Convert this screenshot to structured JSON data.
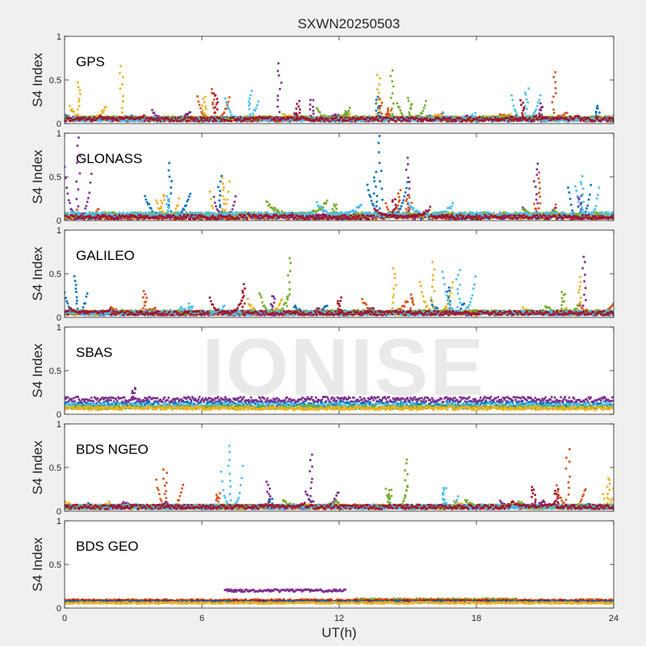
{
  "watermark": "IONISE",
  "chart_data": {
    "type": "scatter",
    "title": "SXWN20250503",
    "xlabel": "UT(h)",
    "ylabel": "S4 Index",
    "xlim": [
      0,
      24
    ],
    "ylim": [
      0,
      1
    ],
    "xticks": [
      0,
      6,
      12,
      18,
      24
    ],
    "yticks": [
      0,
      0.5,
      1
    ],
    "ytick_labels": [
      "0",
      "0.5",
      "1"
    ],
    "grid": false,
    "legend": "none",
    "series_colors": [
      "#0072bd",
      "#d95319",
      "#edb120",
      "#7e2f8e",
      "#77ac30",
      "#4dbeee",
      "#a2142f"
    ],
    "panels": [
      {
        "label": "GPS",
        "series": [
          {
            "color": "#0072bd",
            "base": 0.05,
            "arcs": [
              [
                0.0,
                3.0,
                0.08
              ],
              [
                8.2,
                10.8,
                0.07
              ],
              [
                13.5,
                16.0,
                0.08
              ],
              [
                21.5,
                24.0,
                0.08
              ]
            ],
            "spikes": [
              [
                13.7,
                0.3
              ],
              [
                23.3,
                0.2
              ]
            ]
          },
          {
            "color": "#d95319",
            "base": 0.05,
            "arcs": [
              [
                5.8,
                7.2,
                0.3
              ],
              [
                19.0,
                22.0,
                0.12
              ],
              [
                14.0,
                16.5,
                0.1
              ]
            ],
            "spikes": [
              [
                6.5,
                0.4
              ],
              [
                21.4,
                0.6
              ],
              [
                13.8,
                0.3
              ],
              [
                14.2,
                0.18
              ]
            ]
          },
          {
            "color": "#edb120",
            "base": 0.06,
            "arcs": [
              [
                0.2,
                1.8,
                0.2
              ],
              [
                9.5,
                12.5,
                0.1
              ],
              [
                16.0,
                19.5,
                0.09
              ]
            ],
            "spikes": [
              [
                0.6,
                0.47
              ],
              [
                2.5,
                0.65
              ],
              [
                13.7,
                0.57
              ],
              [
                6.1,
                0.3
              ]
            ]
          },
          {
            "color": "#7e2f8e",
            "base": 0.05,
            "arcs": [
              [
                3.8,
                5.5,
                0.15
              ],
              [
                10.0,
                12.0,
                0.12
              ],
              [
                17.5,
                19.8,
                0.1
              ]
            ],
            "spikes": [
              [
                9.4,
                0.68
              ],
              [
                10.8,
                0.28
              ],
              [
                20.8,
                0.22
              ]
            ]
          },
          {
            "color": "#77ac30",
            "base": 0.06,
            "arcs": [
              [
                11.0,
                12.5,
                0.18
              ],
              [
                14.5,
                15.8,
                0.26
              ],
              [
                18.5,
                21.0,
                0.07
              ]
            ],
            "spikes": [
              [
                15.1,
                0.28
              ],
              [
                14.3,
                0.6
              ],
              [
                12.3,
                0.15
              ]
            ]
          },
          {
            "color": "#4dbeee",
            "base": 0.05,
            "arcs": [
              [
                7.0,
                8.5,
                0.3
              ],
              [
                19.5,
                20.8,
                0.35
              ],
              [
                16.5,
                18.0,
                0.12
              ]
            ],
            "spikes": [
              [
                8.1,
                0.37
              ],
              [
                20.2,
                0.4
              ]
            ]
          },
          {
            "color": "#a2142f",
            "base": 0.05,
            "arcs": [
              [
                1.5,
                3.5,
                0.08
              ],
              [
                8.5,
                10.5,
                0.07
              ],
              [
                20.5,
                22.5,
                0.09
              ]
            ],
            "spikes": [
              [
                6.6,
                0.35
              ],
              [
                10.2,
                0.25
              ],
              [
                20.0,
                0.26
              ]
            ]
          }
        ]
      },
      {
        "label": "GLONASS",
        "series": [
          {
            "color": "#0072bd",
            "base": 0.04,
            "arcs": [
              [
                3.5,
                5.5,
                0.3
              ],
              [
                13.2,
                15.0,
                0.45
              ],
              [
                22.0,
                23.0,
                0.4
              ]
            ],
            "spikes": [
              [
                4.6,
                0.65
              ],
              [
                13.8,
                0.98
              ],
              [
                13.6,
                0.55
              ],
              [
                6.8,
                0.5
              ]
            ]
          },
          {
            "color": "#d95319",
            "base": 0.04,
            "arcs": [
              [
                14.0,
                15.2,
                0.22
              ],
              [
                20.5,
                21.5,
                0.2
              ],
              [
                0.5,
                1.5,
                0.15
              ]
            ],
            "spikes": [
              [
                14.6,
                0.35
              ],
              [
                20.8,
                0.55
              ],
              [
                15.0,
                0.3
              ]
            ]
          },
          {
            "color": "#edb120",
            "base": 0.05,
            "arcs": [
              [
                4.0,
                5.0,
                0.25
              ],
              [
                6.3,
                7.2,
                0.45
              ],
              [
                16.5,
                18.5,
                0.08
              ]
            ],
            "spikes": [
              [
                6.9,
                0.48
              ],
              [
                4.3,
                0.3
              ]
            ]
          },
          {
            "color": "#7e2f8e",
            "base": 0.05,
            "arcs": [
              [
                0.0,
                1.2,
                0.6
              ],
              [
                6.5,
                7.5,
                0.3
              ],
              [
                20.0,
                21.5,
                0.15
              ]
            ],
            "spikes": [
              [
                0.6,
                0.95
              ],
              [
                15.0,
                0.73
              ],
              [
                20.6,
                0.65
              ],
              [
                22.5,
                0.3
              ]
            ]
          },
          {
            "color": "#77ac30",
            "base": 0.07,
            "arcs": [
              [
                8.8,
                11.5,
                0.22
              ],
              [
                20.0,
                21.5,
                0.12
              ]
            ],
            "spikes": [
              [
                11.8,
                0.18
              ]
            ]
          },
          {
            "color": "#4dbeee",
            "base": 0.07,
            "arcs": [
              [
                11.0,
                13.0,
                0.2
              ],
              [
                15.0,
                17.0,
                0.2
              ],
              [
                22.3,
                23.4,
                0.45
              ]
            ],
            "spikes": [
              [
                22.6,
                0.5
              ],
              [
                4.5,
                0.28
              ]
            ]
          },
          {
            "color": "#a2142f",
            "base": 0.04,
            "arcs": [
              [
                13.5,
                16.0,
                0.15
              ],
              [
                8.0,
                10.0,
                0.07
              ]
            ],
            "spikes": [
              [
                14.4,
                0.25
              ]
            ]
          }
        ]
      },
      {
        "label": "GALILEO",
        "series": [
          {
            "color": "#0072bd",
            "base": 0.05,
            "arcs": [
              [
                0.0,
                1.0,
                0.3
              ],
              [
                10.0,
                11.5,
                0.15
              ],
              [
                16.0,
                17.5,
                0.2
              ]
            ],
            "spikes": [
              [
                0.5,
                0.48
              ],
              [
                16.8,
                0.35
              ]
            ]
          },
          {
            "color": "#d95319",
            "base": 0.05,
            "arcs": [
              [
                2.0,
                4.0,
                0.12
              ],
              [
                13.0,
                15.0,
                0.2
              ],
              [
                22.5,
                24.0,
                0.15
              ]
            ],
            "spikes": [
              [
                3.5,
                0.3
              ],
              [
                15.2,
                0.25
              ]
            ]
          },
          {
            "color": "#edb120",
            "base": 0.05,
            "arcs": [
              [
                8.0,
                9.5,
                0.2
              ],
              [
                15.5,
                17.0,
                0.45
              ],
              [
                20.0,
                22.0,
                0.1
              ]
            ],
            "spikes": [
              [
                16.1,
                0.62
              ],
              [
                14.4,
                0.55
              ],
              [
                22.5,
                0.45
              ]
            ]
          },
          {
            "color": "#7e2f8e",
            "base": 0.05,
            "arcs": [
              [
                11.0,
                13.5,
                0.1
              ],
              [
                18.0,
                21.0,
                0.06
              ]
            ],
            "spikes": [
              [
                22.7,
                0.7
              ],
              [
                9.1,
                0.25
              ]
            ]
          },
          {
            "color": "#77ac30",
            "base": 0.06,
            "arcs": [
              [
                8.5,
                9.8,
                0.3
              ],
              [
                21.0,
                22.5,
                0.15
              ]
            ],
            "spikes": [
              [
                9.8,
                0.68
              ],
              [
                21.8,
                0.3
              ]
            ]
          },
          {
            "color": "#4dbeee",
            "base": 0.05,
            "arcs": [
              [
                5.0,
                7.0,
                0.12
              ],
              [
                16.5,
                18.0,
                0.55
              ]
            ],
            "spikes": [
              [
                17.2,
                0.55
              ],
              [
                5.5,
                0.15
              ]
            ]
          },
          {
            "color": "#a2142f",
            "base": 0.05,
            "arcs": [
              [
                6.3,
                7.8,
                0.25
              ],
              [
                0.2,
                2.0,
                0.1
              ]
            ],
            "spikes": [
              [
                7.8,
                0.38
              ],
              [
                12.0,
                0.22
              ]
            ]
          }
        ]
      },
      {
        "label": "SBAS",
        "series": [
          {
            "color": "#0072bd",
            "base": 0.12,
            "noise": 0.03,
            "arcs": [],
            "spikes": []
          },
          {
            "color": "#7e2f8e",
            "base": 0.17,
            "noise": 0.03,
            "arcs": [],
            "spikes": [
              [
                3.0,
                0.3
              ]
            ]
          },
          {
            "color": "#4dbeee",
            "base": 0.1,
            "noise": 0.03,
            "arcs": [],
            "spikes": []
          },
          {
            "color": "#77ac30",
            "base": 0.08,
            "noise": 0.02,
            "arcs": [],
            "spikes": []
          },
          {
            "color": "#edb120",
            "base": 0.07,
            "noise": 0.02,
            "arcs": [],
            "spikes": []
          }
        ]
      },
      {
        "label": "BDS NGEO",
        "series": [
          {
            "color": "#0072bd",
            "base": 0.05,
            "arcs": [
              [
                1.0,
                3.5,
                0.08
              ],
              [
                20.0,
                23.0,
                0.07
              ]
            ],
            "spikes": [
              [
                9.0,
                0.15
              ]
            ]
          },
          {
            "color": "#d95319",
            "base": 0.05,
            "arcs": [
              [
                4.0,
                5.2,
                0.35
              ],
              [
                21.5,
                22.8,
                0.3
              ],
              [
                12.5,
                15.0,
                0.08
              ]
            ],
            "spikes": [
              [
                4.4,
                0.48
              ],
              [
                22.0,
                0.7
              ],
              [
                6.7,
                0.2
              ]
            ]
          },
          {
            "color": "#edb120",
            "base": 0.05,
            "arcs": [
              [
                0.0,
                2.0,
                0.1
              ],
              [
                23.5,
                24.0,
                0.3
              ],
              [
                17.0,
                20.0,
                0.1
              ]
            ],
            "spikes": [
              [
                23.8,
                0.38
              ]
            ]
          },
          {
            "color": "#7e2f8e",
            "base": 0.05,
            "arcs": [
              [
                2.5,
                4.5,
                0.1
              ],
              [
                10.5,
                12.0,
                0.25
              ],
              [
                19.0,
                21.0,
                0.12
              ]
            ],
            "spikes": [
              [
                10.8,
                0.65
              ],
              [
                8.9,
                0.33
              ]
            ]
          },
          {
            "color": "#77ac30",
            "base": 0.05,
            "arcs": [
              [
                9.5,
                12.0,
                0.12
              ],
              [
                14.0,
                15.0,
                0.3
              ],
              [
                17.5,
                20.0,
                0.12
              ]
            ],
            "spikes": [
              [
                14.9,
                0.6
              ],
              [
                14.2,
                0.25
              ]
            ]
          },
          {
            "color": "#4dbeee",
            "base": 0.05,
            "arcs": [
              [
                6.8,
                7.8,
                0.55
              ],
              [
                16.5,
                17.2,
                0.2
              ]
            ],
            "spikes": [
              [
                7.2,
                0.75
              ],
              [
                16.6,
                0.28
              ]
            ]
          },
          {
            "color": "#a2142f",
            "base": 0.05,
            "arcs": [
              [
                8.5,
                10.5,
                0.08
              ],
              [
                19.5,
                21.5,
                0.12
              ]
            ],
            "spikes": [
              [
                20.5,
                0.28
              ],
              [
                21.5,
                0.25
              ]
            ]
          }
        ]
      },
      {
        "label": "BDS GEO",
        "series": [
          {
            "color": "#7e2f8e",
            "base": 0.2,
            "noise": 0.015,
            "xrange": [
              7.0,
              12.3
            ],
            "arcs": [
              [
                7.0,
                12.3,
                0.07
              ]
            ],
            "spikes": []
          },
          {
            "color": "#77ac30",
            "base": 0.1,
            "noise": 0.012,
            "xrange": [
              12.5,
              19.8
            ],
            "arcs": [],
            "spikes": []
          },
          {
            "color": "#d95319",
            "base": 0.09,
            "noise": 0.012,
            "arcs": [],
            "spikes": []
          },
          {
            "color": "#a2142f",
            "base": 0.08,
            "noise": 0.01,
            "arcs": [],
            "spikes": []
          },
          {
            "color": "#0072bd",
            "base": 0.07,
            "noise": 0.01,
            "arcs": [],
            "spikes": []
          },
          {
            "color": "#edb120",
            "base": 0.06,
            "noise": 0.01,
            "arcs": [],
            "spikes": []
          }
        ]
      }
    ]
  }
}
